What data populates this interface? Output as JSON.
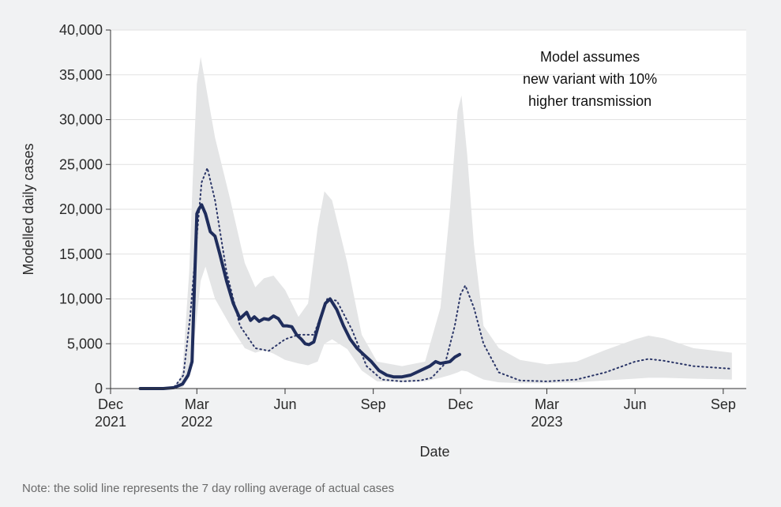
{
  "note": "Note: the solid line represents the 7 day rolling average of actual cases",
  "colors": {
    "background": "#f1f2f3",
    "plot_background": "#ffffff",
    "band": "#e4e5e6",
    "actual": "#1f2d5c",
    "projection": "#2a3567",
    "grid": "#e2e2e2"
  },
  "chart_data": {
    "type": "line",
    "xlabel": "Date",
    "ylabel": "Modelled daily cases",
    "xlim": [
      "2021-12-01",
      "2023-09-25"
    ],
    "ylim": [
      0,
      40000
    ],
    "grid": true,
    "x_ticks": [
      {
        "date": "2021-12-01",
        "lines": [
          "Dec",
          "2021"
        ]
      },
      {
        "date": "2022-03-01",
        "lines": [
          "Mar",
          "2022"
        ]
      },
      {
        "date": "2022-06-01",
        "lines": [
          "Jun"
        ]
      },
      {
        "date": "2022-09-01",
        "lines": [
          "Sep"
        ]
      },
      {
        "date": "2022-12-01",
        "lines": [
          "Dec"
        ]
      },
      {
        "date": "2023-03-01",
        "lines": [
          "Mar",
          "2023"
        ]
      },
      {
        "date": "2023-06-01",
        "lines": [
          "Jun"
        ]
      },
      {
        "date": "2023-09-01",
        "lines": [
          "Sep"
        ]
      }
    ],
    "y_ticks": [
      {
        "value": 0,
        "label": "0"
      },
      {
        "value": 5000,
        "label": "5,000"
      },
      {
        "value": 10000,
        "label": "10,000"
      },
      {
        "value": 15000,
        "label": "15,000"
      },
      {
        "value": 20000,
        "label": "20,000"
      },
      {
        "value": 25000,
        "label": "25,000"
      },
      {
        "value": 30000,
        "label": "30,000"
      },
      {
        "value": 35000,
        "label": "35,000"
      },
      {
        "value": 40000,
        "label": "40,000"
      }
    ],
    "annotation": {
      "lines": [
        "Model assumes",
        "new variant with 10%",
        "higher transmission"
      ],
      "anchor": {
        "x": "2023-04-15",
        "y": 37000
      }
    },
    "series": [
      {
        "style": "band",
        "x": [
          "2022-02-07",
          "2022-02-14",
          "2022-02-21",
          "2022-02-25",
          "2022-03-01",
          "2022-03-05",
          "2022-03-10",
          "2022-03-20",
          "2022-04-05",
          "2022-04-20",
          "2022-05-01",
          "2022-05-10",
          "2022-05-20",
          "2022-06-01",
          "2022-06-15",
          "2022-06-25",
          "2022-07-05",
          "2022-07-12",
          "2022-07-20",
          "2022-08-05",
          "2022-08-20",
          "2022-09-05",
          "2022-10-01",
          "2022-10-25",
          "2022-11-10",
          "2022-11-20",
          "2022-11-28",
          "2022-12-02",
          "2022-12-08",
          "2022-12-15",
          "2022-12-25",
          "2023-01-10",
          "2023-02-01",
          "2023-03-01",
          "2023-04-01",
          "2023-05-01",
          "2023-06-01",
          "2023-06-15",
          "2023-07-01",
          "2023-08-01",
          "2023-09-10"
        ],
        "upper": [
          0,
          2000,
          13000,
          24000,
          34000,
          37000,
          34000,
          28000,
          21000,
          14000,
          11300,
          12300,
          12600,
          11000,
          8000,
          9500,
          18000,
          22000,
          21000,
          14000,
          6000,
          3000,
          2500,
          3000,
          9000,
          20000,
          31000,
          32700,
          26000,
          16000,
          7000,
          4500,
          3200,
          2700,
          3000,
          4300,
          5500,
          5900,
          5600,
          4500,
          4000
        ],
        "lower": [
          0,
          100,
          1200,
          4000,
          8000,
          12000,
          13600,
          10000,
          7000,
          4500,
          4000,
          4300,
          3900,
          3200,
          2800,
          2600,
          3000,
          5000,
          5500,
          4400,
          2000,
          800,
          700,
          800,
          1200,
          1500,
          1800,
          2000,
          1900,
          1500,
          1000,
          700,
          600,
          600,
          700,
          900,
          1100,
          1200,
          1200,
          1100,
          1000
        ]
      },
      {
        "style": "dotted",
        "x": [
          "2022-01-01",
          "2022-01-20",
          "2022-02-05",
          "2022-02-15",
          "2022-02-22",
          "2022-03-01",
          "2022-03-06",
          "2022-03-12",
          "2022-03-20",
          "2022-04-01",
          "2022-04-15",
          "2022-05-01",
          "2022-05-15",
          "2022-06-01",
          "2022-06-15",
          "2022-07-01",
          "2022-07-15",
          "2022-07-25",
          "2022-08-10",
          "2022-08-25",
          "2022-09-10",
          "2022-10-01",
          "2022-10-20",
          "2022-11-01",
          "2022-11-15",
          "2022-11-25",
          "2022-12-01",
          "2022-12-06",
          "2022-12-15",
          "2022-12-25",
          "2023-01-10",
          "2023-02-01",
          "2023-03-01",
          "2023-04-01",
          "2023-05-01",
          "2023-06-01",
          "2023-06-15",
          "2023-07-01",
          "2023-08-01",
          "2023-09-10"
        ],
        "y": [
          0,
          0,
          100,
          1500,
          8000,
          17000,
          23000,
          24600,
          21000,
          13000,
          7000,
          4500,
          4200,
          5500,
          6000,
          6000,
          10000,
          9800,
          6500,
          2500,
          1000,
          800,
          900,
          1200,
          2800,
          7000,
          10500,
          11500,
          9000,
          5000,
          1800,
          900,
          800,
          1000,
          1800,
          3000,
          3300,
          3100,
          2500,
          2200
        ]
      },
      {
        "style": "solid",
        "x": [
          "2022-01-01",
          "2022-01-25",
          "2022-02-05",
          "2022-02-14",
          "2022-02-20",
          "2022-02-24",
          "2022-02-27",
          "2022-03-01",
          "2022-03-03",
          "2022-03-06",
          "2022-03-10",
          "2022-03-15",
          "2022-03-20",
          "2022-03-25",
          "2022-04-01",
          "2022-04-08",
          "2022-04-15",
          "2022-04-22",
          "2022-04-26",
          "2022-04-30",
          "2022-05-05",
          "2022-05-10",
          "2022-05-15",
          "2022-05-20",
          "2022-05-25",
          "2022-05-30",
          "2022-06-03",
          "2022-06-08",
          "2022-06-13",
          "2022-06-18",
          "2022-06-22",
          "2022-06-26",
          "2022-07-01",
          "2022-07-07",
          "2022-07-13",
          "2022-07-18",
          "2022-07-25",
          "2022-08-01",
          "2022-08-08",
          "2022-08-15",
          "2022-08-22",
          "2022-08-30",
          "2022-09-07",
          "2022-09-15",
          "2022-09-22",
          "2022-10-01",
          "2022-10-10",
          "2022-10-20",
          "2022-10-30",
          "2022-11-05",
          "2022-11-10",
          "2022-11-15",
          "2022-11-20",
          "2022-11-25",
          "2022-11-30"
        ],
        "y": [
          0,
          0,
          100,
          500,
          1500,
          3000,
          13000,
          19500,
          20000,
          20500,
          19500,
          17500,
          17000,
          15000,
          12000,
          9500,
          7800,
          8500,
          7600,
          8000,
          7500,
          7800,
          7700,
          8100,
          7800,
          7000,
          7000,
          6900,
          6000,
          5500,
          5000,
          4900,
          5200,
          7500,
          9500,
          10000,
          8800,
          7000,
          5500,
          4500,
          3800,
          3000,
          2000,
          1500,
          1300,
          1300,
          1500,
          2000,
          2500,
          3000,
          2800,
          2900,
          3000,
          3500,
          3800
        ]
      }
    ]
  }
}
